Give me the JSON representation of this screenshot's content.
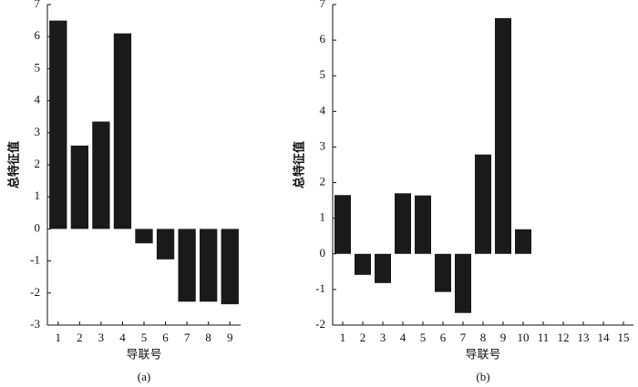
{
  "chart_data": [
    {
      "type": "bar",
      "caption": "(a)",
      "xlabel": "导联号",
      "ylabel": "总特征值",
      "color": "#1a1a1a",
      "categories": [
        "1",
        "2",
        "3",
        "4",
        "5",
        "6",
        "7",
        "8",
        "9"
      ],
      "values": [
        6.5,
        2.6,
        3.35,
        6.1,
        -0.45,
        -0.95,
        -2.27,
        -2.27,
        -2.35
      ],
      "ylim": [
        -3,
        7
      ],
      "yticks": [
        -3,
        -2,
        -1,
        0,
        1,
        2,
        3,
        4,
        5,
        6,
        7
      ]
    },
    {
      "type": "bar",
      "caption": "(b)",
      "xlabel": "导联号",
      "ylabel": "总特征值",
      "color": "#1a1a1a",
      "categories": [
        "1",
        "2",
        "3",
        "4",
        "5",
        "6",
        "7",
        "8",
        "9",
        "10",
        "11",
        "12",
        "13",
        "14",
        "15"
      ],
      "values": [
        1.65,
        -0.59,
        -0.82,
        1.7,
        1.64,
        -1.07,
        -1.66,
        2.79,
        6.62,
        0.69,
        null,
        null,
        null,
        null,
        null
      ],
      "ylim": [
        -2,
        7
      ],
      "yticks": [
        -2,
        -1,
        0,
        1,
        2,
        3,
        4,
        5,
        6,
        7
      ]
    }
  ]
}
